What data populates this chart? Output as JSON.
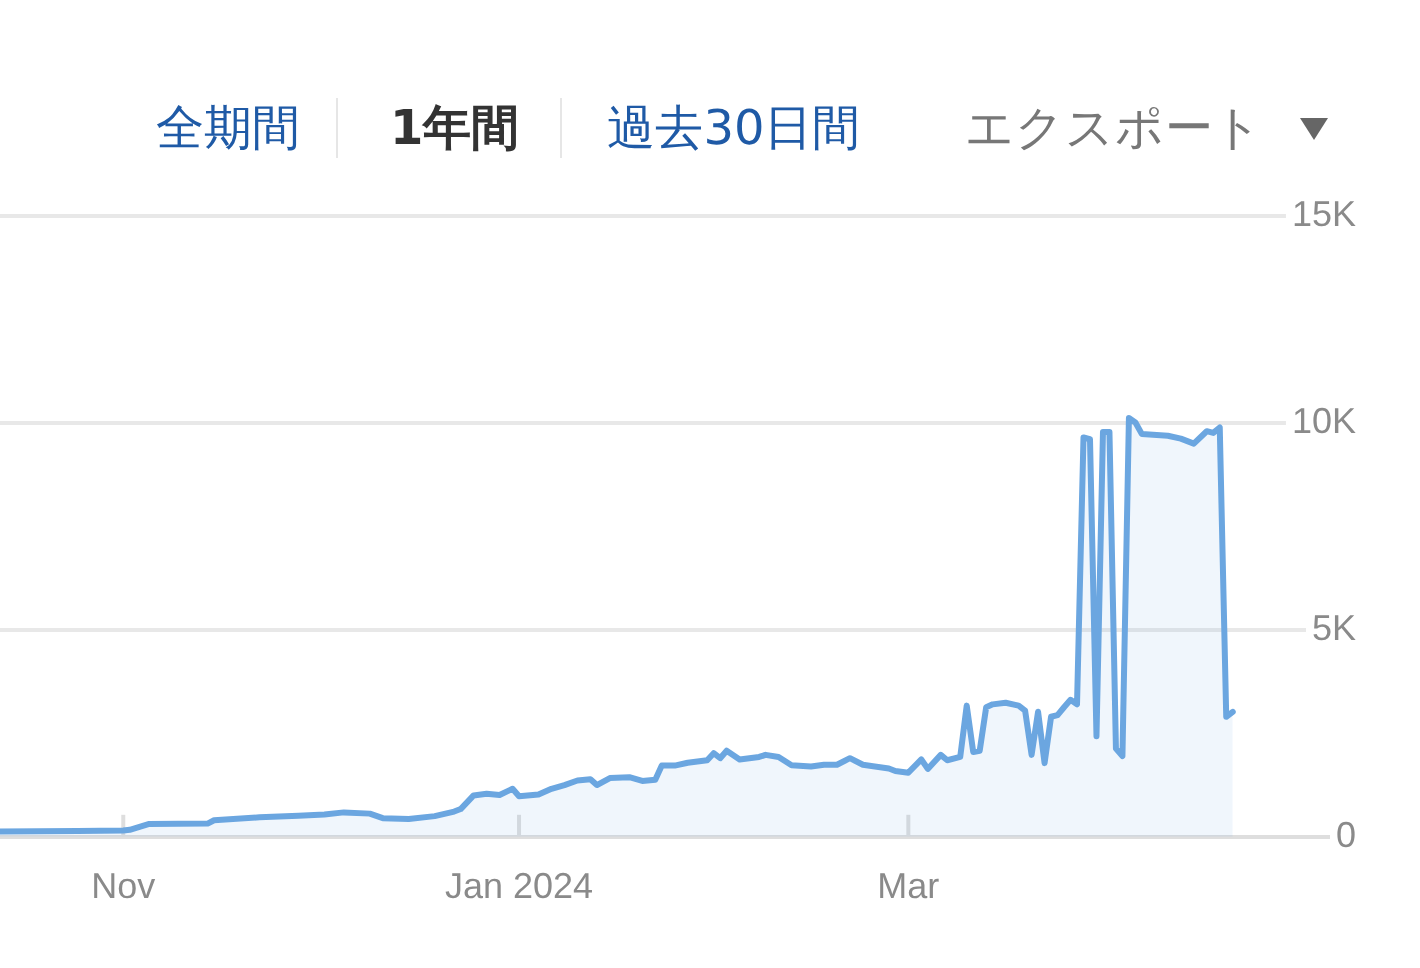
{
  "chart_data": {
    "type": "area",
    "annotations": [
      "全期間",
      "1年間",
      "過去30日間",
      "エクスポート"
    ],
    "x": [
      "2023-10-13",
      "2023-10-25",
      "2023-11-01",
      "2023-11-02",
      "2023-11-05",
      "2023-11-14",
      "2023-11-15",
      "2023-11-22",
      "2023-11-28",
      "2023-12-02",
      "2023-12-05",
      "2023-12-09",
      "2023-12-11",
      "2023-12-15",
      "2023-12-19",
      "2023-12-22",
      "2023-12-23",
      "2023-12-25",
      "2023-12-27",
      "2023-12-29",
      "2023-12-31",
      "2024-01-01",
      "2024-01-04",
      "2024-01-06",
      "2024-01-08",
      "2024-01-10",
      "2024-01-12",
      "2024-01-13",
      "2024-01-15",
      "2024-01-18",
      "2024-01-20",
      "2024-01-22",
      "2024-01-23",
      "2024-01-25",
      "2024-01-27",
      "2024-01-30",
      "2024-01-31",
      "2024-02-01",
      "2024-02-02",
      "2024-02-04",
      "2024-02-07",
      "2024-02-08",
      "2024-02-10",
      "2024-02-12",
      "2024-02-15",
      "2024-02-17",
      "2024-02-19",
      "2024-02-21",
      "2024-02-23",
      "2024-02-27",
      "2024-02-28",
      "2024-03-01",
      "2024-03-03",
      "2024-03-04",
      "2024-03-06",
      "2024-03-07",
      "2024-03-09",
      "2024-03-10",
      "2024-03-11",
      "2024-03-12",
      "2024-03-13",
      "2024-03-14",
      "2024-03-16",
      "2024-03-18",
      "2024-03-19",
      "2024-03-20",
      "2024-03-21",
      "2024-03-22",
      "2024-03-23",
      "2024-03-24",
      "2024-03-25",
      "2024-03-26",
      "2024-03-27",
      "2024-03-28",
      "2024-03-29",
      "2024-03-30",
      "2024-03-31",
      "2024-04-01",
      "2024-04-02",
      "2024-04-03",
      "2024-04-04",
      "2024-04-05",
      "2024-04-06",
      "2024-04-10",
      "2024-04-12",
      "2024-04-14",
      "2024-04-16",
      "2024-04-17",
      "2024-04-18",
      "2024-04-19",
      "2024-04-20"
    ],
    "values": [
      130,
      140,
      150,
      170,
      310,
      320,
      400,
      470,
      510,
      540,
      590,
      560,
      450,
      430,
      500,
      610,
      670,
      1000,
      1040,
      1010,
      1160,
      980,
      1020,
      1160,
      1250,
      1360,
      1390,
      1250,
      1420,
      1440,
      1350,
      1380,
      1720,
      1720,
      1790,
      1850,
      2020,
      1900,
      2080,
      1870,
      1930,
      1980,
      1930,
      1730,
      1700,
      1740,
      1740,
      1900,
      1740,
      1650,
      1590,
      1550,
      1870,
      1640,
      1980,
      1850,
      1930,
      3170,
      2050,
      2080,
      3130,
      3200,
      3240,
      3170,
      3050,
      1980,
      3020,
      1780,
      2900,
      2940,
      3130,
      3310,
      3200,
      9650,
      9610,
      2430,
      9780,
      9780,
      2130,
      1950,
      10120,
      10010,
      9730,
      9690,
      9620,
      9500,
      9800,
      9760,
      9890,
      2900,
      3020
    ],
    "color": "#6ba6e0",
    "xlim": [
      "2023-10-13",
      "2024-05-09"
    ],
    "xticks": [
      {
        "value": "2023-11-01",
        "label": "Nov"
      },
      {
        "value": "2024-01-01",
        "label": "Jan 2024"
      },
      {
        "value": "2024-03-01",
        "label": "Mar"
      }
    ],
    "ylim": [
      0,
      15000
    ],
    "yticks": [
      0,
      {
        "value": 5000,
        "label": "5K"
      },
      {
        "value": 10000,
        "label": "10K"
      },
      {
        "value": 15000,
        "label": "15K"
      }
    ],
    "grid": "y",
    "marker": "none"
  }
}
